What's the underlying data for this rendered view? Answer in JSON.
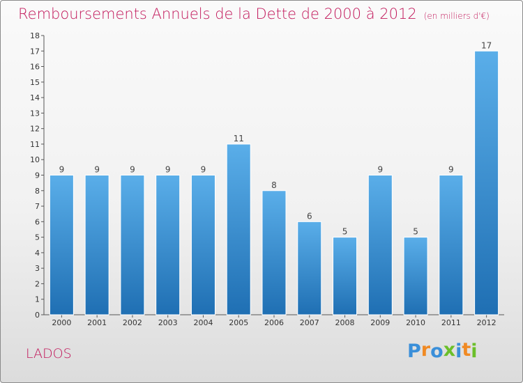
{
  "chart_data": {
    "type": "bar",
    "title": "Remboursements Annuels de la Dette de 2000 à 2012",
    "subtitle": "(en milliers d'€)",
    "categories": [
      "2000",
      "2001",
      "2002",
      "2003",
      "2004",
      "2005",
      "2006",
      "2007",
      "2008",
      "2009",
      "2010",
      "2011",
      "2012"
    ],
    "values": [
      9,
      9,
      9,
      9,
      9,
      11,
      8,
      6,
      5,
      9,
      5,
      9,
      17
    ],
    "ylim": [
      0,
      18
    ],
    "yticks": [
      0,
      1,
      2,
      3,
      4,
      5,
      6,
      7,
      8,
      9,
      10,
      11,
      12,
      13,
      14,
      15,
      16,
      17,
      18
    ],
    "grid": false,
    "data_labels": true,
    "bar_color": "#3d93d6"
  },
  "commune": "LADOS",
  "logo": {
    "text": "Proxiti",
    "colors": [
      "#3a8fd9",
      "#f08a24",
      "#3a8fd9",
      "#6bbf2a",
      "#3a8fd9",
      "#f08a24",
      "#6bbf2a"
    ]
  },
  "colors": {
    "title": "#c2185b",
    "bar_top": "#5aaee9",
    "bar_bottom": "#1f6fb3"
  }
}
